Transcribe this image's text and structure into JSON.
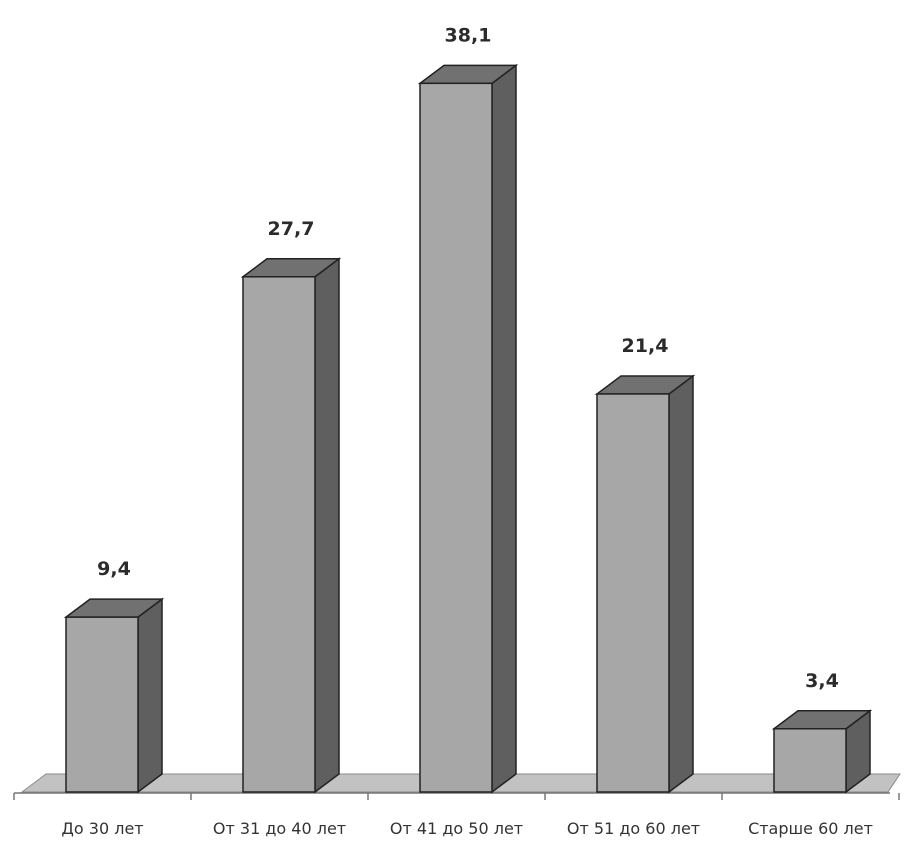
{
  "chart_data": {
    "type": "bar",
    "style": "3d-column",
    "title": "",
    "xlabel": "",
    "ylabel": "",
    "categories": [
      "До 30 лет",
      "От 31 до 40 лет",
      "От 41 до 50 лет",
      "От 51 до 60 лет",
      "Старше 60 лет"
    ],
    "values": [
      9.4,
      27.7,
      38.1,
      21.4,
      3.4
    ],
    "value_labels": [
      "9,4",
      "27,7",
      "38,1",
      "21,4",
      "3,4"
    ],
    "ylim": [
      0,
      40
    ],
    "grid": false,
    "legend": "none",
    "colors": {
      "bar_front": "#a7a7a7",
      "bar_top": "#717171",
      "bar_side": "#5f5f5f",
      "bar_edge": "#222222",
      "floor": "#c2c2c2",
      "axis": "#777777"
    }
  }
}
